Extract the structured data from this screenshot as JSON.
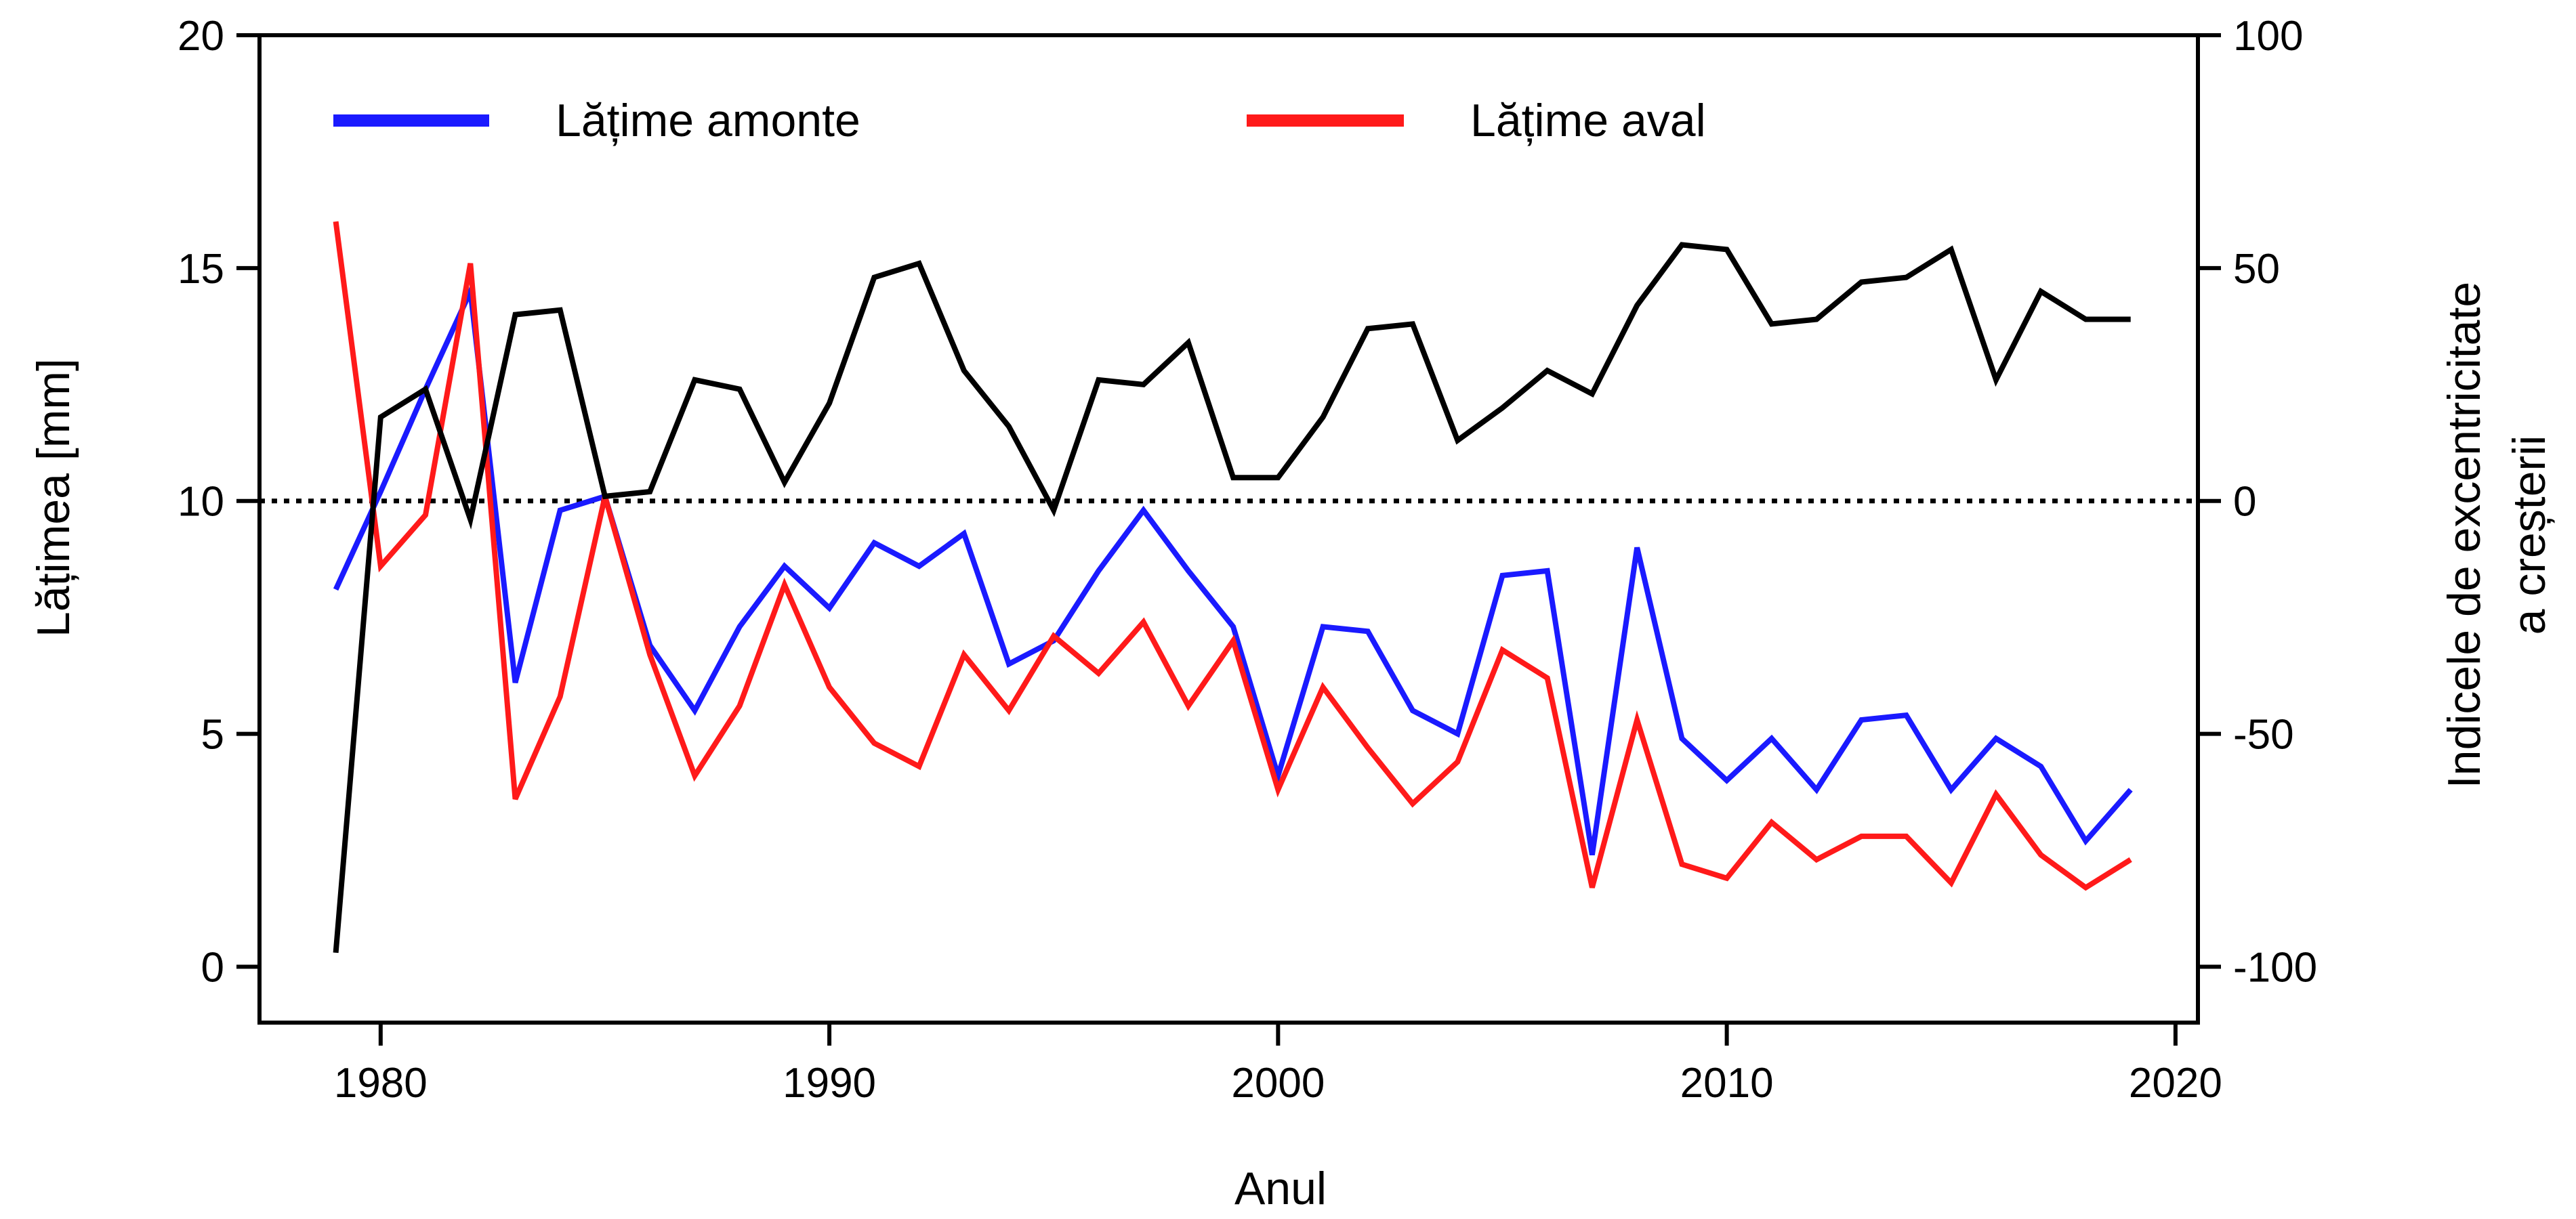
{
  "chart_data": {
    "type": "line",
    "xlabel": "Anul",
    "ylabel_left": "Lățimea [mm]",
    "ylabel_right_lines": [
      "Indicele de excentricitate",
      "a creșterii"
    ],
    "xlim": [
      1977.3,
      2020.5
    ],
    "ylim_left": [
      -1.2,
      20
    ],
    "ylim_right": [
      -112,
      100
    ],
    "x_ticks": [
      1980,
      1990,
      2000,
      2010,
      2020
    ],
    "y_ticks_left": [
      0,
      5,
      10,
      15,
      20
    ],
    "y_ticks_right": [
      -100,
      -50,
      0,
      50,
      100
    ],
    "reference_line": {
      "axis": "right",
      "value": 0,
      "style": "dotted",
      "color": "#000000"
    },
    "legend": {
      "placement": "top",
      "orientation": "horizontal"
    },
    "grid": false,
    "x": [
      1979,
      1980,
      1981,
      1982,
      1983,
      1984,
      1985,
      1986,
      1987,
      1988,
      1989,
      1990,
      1991,
      1992,
      1993,
      1994,
      1995,
      1996,
      1997,
      1998,
      1999,
      2000,
      2001,
      2002,
      2003,
      2004,
      2005,
      2006,
      2007,
      2008,
      2009,
      2010,
      2011,
      2012,
      2013,
      2014,
      2015,
      2016,
      2017,
      2018,
      2019
    ],
    "series": [
      {
        "name": "Lățime amonte",
        "axis": "left",
        "color": "#1a1aff",
        "in_legend": true,
        "values": [
          8.1,
          10.2,
          12.4,
          14.5,
          6.1,
          9.8,
          10.1,
          6.9,
          5.5,
          7.3,
          8.6,
          7.7,
          9.1,
          8.6,
          9.3,
          6.5,
          7.0,
          8.5,
          9.8,
          8.5,
          7.3,
          4.1,
          7.3,
          7.2,
          5.5,
          5.0,
          8.4,
          8.5,
          2.4,
          9.0,
          4.9,
          4.0,
          4.9,
          3.8,
          5.3,
          5.4,
          3.8,
          4.9,
          4.3,
          2.7,
          3.8
        ]
      },
      {
        "name": "Lățime aval",
        "axis": "left",
        "color": "#ff1a1a",
        "in_legend": true,
        "values": [
          16.0,
          8.6,
          9.7,
          15.1,
          3.6,
          5.8,
          10.1,
          6.7,
          4.1,
          5.6,
          8.2,
          6.0,
          4.8,
          4.3,
          6.7,
          5.5,
          7.1,
          6.3,
          7.4,
          5.6,
          7.0,
          3.8,
          6.0,
          4.7,
          3.5,
          4.4,
          6.8,
          6.2,
          1.7,
          5.3,
          2.2,
          1.9,
          3.1,
          2.3,
          2.8,
          2.8,
          1.8,
          3.7,
          2.4,
          1.7,
          2.3
        ]
      },
      {
        "name": "",
        "axis": "right",
        "color": "#000000",
        "in_legend": false,
        "values": [
          -97,
          18,
          24,
          -4,
          40,
          41,
          1,
          2,
          26,
          24,
          4,
          21,
          48,
          51,
          28,
          16,
          -2,
          26,
          25,
          34,
          5,
          5,
          18,
          37,
          38,
          13,
          20,
          28,
          23,
          42,
          55,
          54,
          38,
          39,
          47,
          48,
          54,
          26,
          45,
          39,
          39
        ]
      }
    ]
  }
}
